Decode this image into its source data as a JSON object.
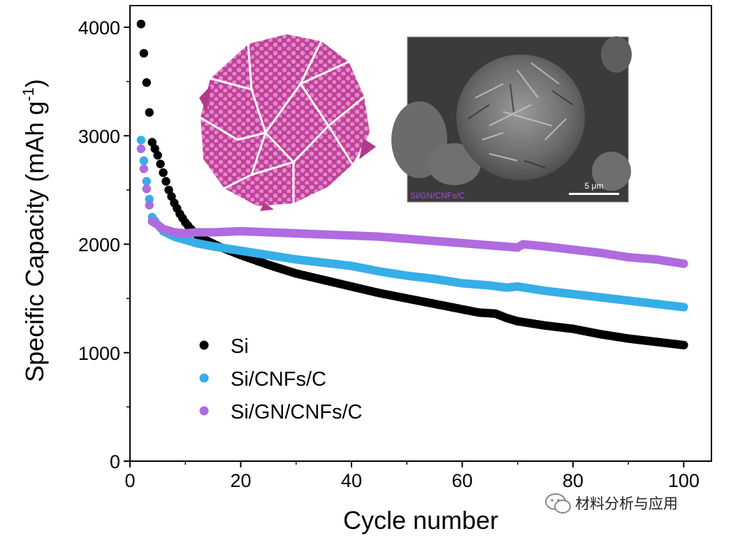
{
  "chart_data": {
    "type": "scatter",
    "title": "",
    "xlabel": "Cycle number",
    "ylabel": "Specific Capacity (mAh g",
    "ylabel_superscript": "-1",
    "ylabel_close": ")",
    "xlim": [
      0,
      105
    ],
    "ylim": [
      0,
      4200
    ],
    "xticks": [
      0,
      20,
      40,
      60,
      80,
      100
    ],
    "yticks": [
      0,
      1000,
      2000,
      3000,
      4000
    ],
    "legend_position": "bottom-left",
    "series": [
      {
        "name": "Si",
        "color": "#000000",
        "points": [
          [
            2,
            4030
          ],
          [
            3,
            3490
          ],
          [
            4,
            2940
          ],
          [
            5,
            2820
          ],
          [
            6,
            2660
          ],
          [
            7,
            2500
          ],
          [
            8,
            2380
          ],
          [
            9,
            2280
          ],
          [
            10,
            2200
          ],
          [
            11,
            2140
          ],
          [
            12,
            2090
          ],
          [
            14,
            2030
          ],
          [
            16,
            1980
          ],
          [
            18,
            1940
          ],
          [
            20,
            1900
          ],
          [
            25,
            1810
          ],
          [
            30,
            1730
          ],
          [
            35,
            1670
          ],
          [
            40,
            1610
          ],
          [
            45,
            1550
          ],
          [
            50,
            1500
          ],
          [
            55,
            1450
          ],
          [
            60,
            1400
          ],
          [
            63,
            1370
          ],
          [
            66,
            1360
          ],
          [
            68,
            1320
          ],
          [
            70,
            1290
          ],
          [
            75,
            1250
          ],
          [
            80,
            1220
          ],
          [
            85,
            1170
          ],
          [
            90,
            1130
          ],
          [
            95,
            1100
          ],
          [
            100,
            1070
          ]
        ]
      },
      {
        "name": "Si/CNFs/C",
        "color": "#36aee8",
        "points": [
          [
            2,
            2960
          ],
          [
            3,
            2580
          ],
          [
            4,
            2250
          ],
          [
            5,
            2180
          ],
          [
            6,
            2120
          ],
          [
            8,
            2070
          ],
          [
            10,
            2040
          ],
          [
            12,
            2010
          ],
          [
            15,
            1980
          ],
          [
            20,
            1940
          ],
          [
            25,
            1900
          ],
          [
            30,
            1860
          ],
          [
            35,
            1830
          ],
          [
            40,
            1800
          ],
          [
            45,
            1750
          ],
          [
            50,
            1710
          ],
          [
            55,
            1680
          ],
          [
            60,
            1640
          ],
          [
            65,
            1620
          ],
          [
            68,
            1600
          ],
          [
            70,
            1610
          ],
          [
            75,
            1570
          ],
          [
            80,
            1540
          ],
          [
            85,
            1510
          ],
          [
            90,
            1480
          ],
          [
            95,
            1450
          ],
          [
            100,
            1420
          ]
        ]
      },
      {
        "name": "Si/GN/CNFs/C",
        "color": "#b06be0",
        "points": [
          [
            2,
            2880
          ],
          [
            3,
            2510
          ],
          [
            4,
            2210
          ],
          [
            5,
            2180
          ],
          [
            6,
            2140
          ],
          [
            8,
            2110
          ],
          [
            10,
            2100
          ],
          [
            12,
            2110
          ],
          [
            15,
            2110
          ],
          [
            20,
            2120
          ],
          [
            25,
            2110
          ],
          [
            30,
            2100
          ],
          [
            35,
            2090
          ],
          [
            40,
            2080
          ],
          [
            45,
            2070
          ],
          [
            50,
            2050
          ],
          [
            55,
            2030
          ],
          [
            60,
            2010
          ],
          [
            65,
            1990
          ],
          [
            70,
            1970
          ],
          [
            71,
            2000
          ],
          [
            75,
            1980
          ],
          [
            80,
            1950
          ],
          [
            85,
            1920
          ],
          [
            90,
            1880
          ],
          [
            95,
            1860
          ],
          [
            100,
            1820
          ]
        ]
      }
    ],
    "annotations": [
      {
        "kind": "inset-illustration",
        "color": "#c93fa3"
      },
      {
        "kind": "inset-sem-image",
        "label": "Si/GN/CNFs/C",
        "scale_label": "5 μm"
      }
    ]
  },
  "watermark": {
    "text": "材料分析与应用"
  }
}
